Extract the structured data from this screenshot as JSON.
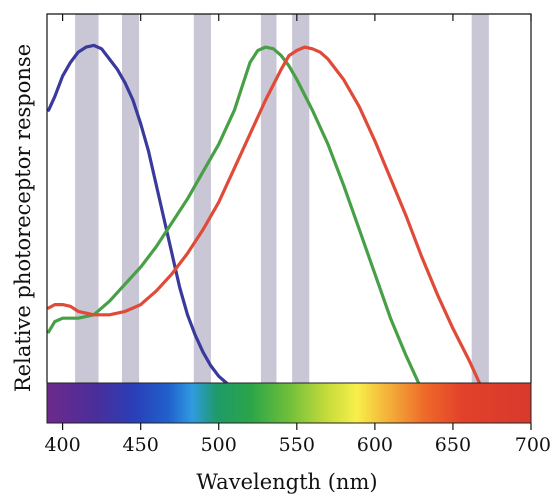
{
  "chart_data": {
    "type": "line",
    "title": "",
    "xlabel": "Wavelength (nm)",
    "ylabel": "Relative photoreceptor response",
    "xlim": [
      390,
      700
    ],
    "ylim": [
      0,
      1
    ],
    "x_ticks": [
      "400",
      "450",
      "500",
      "550",
      "600",
      "650",
      "700"
    ],
    "grid": false,
    "legend": "none",
    "highlight_bands": [
      {
        "x0": 408,
        "x1": 423
      },
      {
        "x0": 438,
        "x1": 449
      },
      {
        "x0": 484,
        "x1": 495
      },
      {
        "x0": 527,
        "x1": 537
      },
      {
        "x0": 547,
        "x1": 558
      },
      {
        "x0": 662,
        "x1": 673
      }
    ],
    "band_color": "#c9c6d6",
    "spectrum_bar": true,
    "series": [
      {
        "color": "#3a3a9c",
        "points": [
          [
            391,
            0.8
          ],
          [
            395,
            0.84
          ],
          [
            400,
            0.9
          ],
          [
            405,
            0.94
          ],
          [
            410,
            0.97
          ],
          [
            415,
            0.985
          ],
          [
            420,
            0.99
          ],
          [
            425,
            0.98
          ],
          [
            430,
            0.95
          ],
          [
            435,
            0.92
          ],
          [
            440,
            0.88
          ],
          [
            445,
            0.83
          ],
          [
            450,
            0.76
          ],
          [
            455,
            0.68
          ],
          [
            460,
            0.58
          ],
          [
            465,
            0.48
          ],
          [
            470,
            0.38
          ],
          [
            475,
            0.28
          ],
          [
            480,
            0.2
          ],
          [
            485,
            0.14
          ],
          [
            490,
            0.09
          ],
          [
            495,
            0.05
          ],
          [
            500,
            0.02
          ],
          [
            505,
            0.0
          ]
        ]
      },
      {
        "color": "#48a046",
        "points": [
          [
            391,
            0.15
          ],
          [
            395,
            0.18
          ],
          [
            400,
            0.19
          ],
          [
            410,
            0.19
          ],
          [
            420,
            0.2
          ],
          [
            430,
            0.24
          ],
          [
            440,
            0.29
          ],
          [
            450,
            0.34
          ],
          [
            460,
            0.4
          ],
          [
            470,
            0.47
          ],
          [
            480,
            0.54
          ],
          [
            490,
            0.62
          ],
          [
            500,
            0.7
          ],
          [
            510,
            0.8
          ],
          [
            515,
            0.87
          ],
          [
            520,
            0.94
          ],
          [
            525,
            0.975
          ],
          [
            530,
            0.985
          ],
          [
            535,
            0.98
          ],
          [
            540,
            0.96
          ],
          [
            545,
            0.93
          ],
          [
            550,
            0.89
          ],
          [
            560,
            0.8
          ],
          [
            570,
            0.7
          ],
          [
            580,
            0.58
          ],
          [
            590,
            0.45
          ],
          [
            600,
            0.32
          ],
          [
            610,
            0.19
          ],
          [
            620,
            0.08
          ],
          [
            628,
            0.0
          ]
        ]
      },
      {
        "color": "#e04a38",
        "points": [
          [
            391,
            0.22
          ],
          [
            395,
            0.23
          ],
          [
            400,
            0.23
          ],
          [
            405,
            0.225
          ],
          [
            410,
            0.21
          ],
          [
            420,
            0.2
          ],
          [
            430,
            0.2
          ],
          [
            440,
            0.21
          ],
          [
            450,
            0.23
          ],
          [
            460,
            0.27
          ],
          [
            470,
            0.32
          ],
          [
            480,
            0.38
          ],
          [
            490,
            0.45
          ],
          [
            500,
            0.53
          ],
          [
            510,
            0.63
          ],
          [
            520,
            0.73
          ],
          [
            530,
            0.83
          ],
          [
            540,
            0.92
          ],
          [
            545,
            0.96
          ],
          [
            550,
            0.975
          ],
          [
            555,
            0.985
          ],
          [
            560,
            0.98
          ],
          [
            565,
            0.97
          ],
          [
            570,
            0.95
          ],
          [
            580,
            0.89
          ],
          [
            590,
            0.81
          ],
          [
            600,
            0.71
          ],
          [
            610,
            0.6
          ],
          [
            620,
            0.49
          ],
          [
            630,
            0.37
          ],
          [
            640,
            0.26
          ],
          [
            650,
            0.16
          ],
          [
            660,
            0.07
          ],
          [
            667,
            0.0
          ]
        ]
      }
    ]
  }
}
